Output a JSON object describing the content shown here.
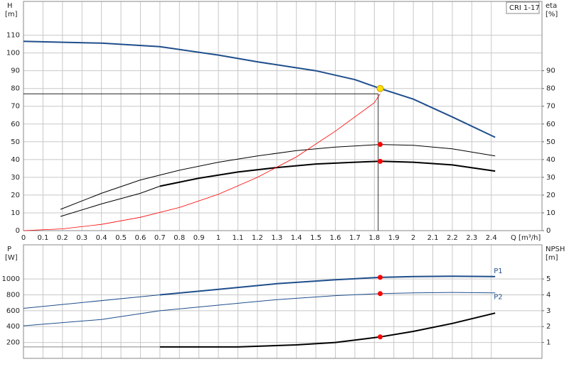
{
  "chart_data": [
    {
      "type": "line",
      "y_label": "H",
      "y_unit": "[m]",
      "y2_label": "eta",
      "y2_unit": "[%]",
      "annotation": "CRI 1-17",
      "x_label": "Q [m³/h]",
      "xlim": [
        0,
        2.66
      ],
      "xticks": [
        0,
        0.1,
        0.2,
        0.3,
        0.4,
        0.5,
        0.6,
        0.7,
        0.8,
        0.9,
        1.0,
        1.1,
        1.2,
        1.3,
        1.4,
        1.5,
        1.6,
        1.7,
        1.8,
        1.9,
        2.0,
        2.1,
        2.2,
        2.3,
        2.4
      ],
      "ylim": [
        0,
        129
      ],
      "yticks": [
        0,
        10,
        20,
        30,
        40,
        50,
        60,
        70,
        80,
        90,
        100,
        110
      ],
      "y2lim": [
        0,
        129
      ],
      "y2ticks": [
        0,
        10,
        20,
        30,
        40,
        50,
        60,
        70,
        80,
        90
      ],
      "grid": true,
      "reference": {
        "x": 1.82,
        "y": 77,
        "color": "#000000"
      },
      "series": [
        {
          "color": "#1f4e8c",
          "width": 2,
          "x": [
            0,
            0.4,
            0.7,
            1.0,
            1.2,
            1.5,
            1.7,
            1.83,
            2.0,
            2.2,
            2.42
          ],
          "values": [
            106.5,
            105.5,
            103.5,
            98.8,
            95,
            90,
            85,
            80,
            74,
            64,
            52.5
          ]
        },
        {
          "color": "#000000",
          "width": 1,
          "x": [
            0.19,
            0.4,
            0.6,
            0.8,
            1.0,
            1.2,
            1.4,
            1.6,
            1.83,
            2.0,
            2.2,
            2.42
          ],
          "values": [
            12,
            21,
            28.5,
            34,
            38.5,
            42,
            45,
            47,
            48.5,
            48,
            46,
            42
          ]
        },
        {
          "color": "#000000",
          "width": 1,
          "x": [
            0.19,
            0.4,
            0.6,
            0.7
          ],
          "values": [
            8,
            15,
            21,
            25
          ]
        },
        {
          "color": "#000000",
          "width": 2,
          "x": [
            0.7,
            0.9,
            1.1,
            1.3,
            1.5,
            1.7,
            1.83,
            2.0,
            2.2,
            2.42
          ],
          "values": [
            25,
            29.5,
            33,
            35.5,
            37.5,
            38.5,
            39,
            38.5,
            37,
            33.5
          ]
        },
        {
          "color": "#ff0000",
          "width": 0.8,
          "x": [
            0,
            0.2,
            0.4,
            0.6,
            0.8,
            1.0,
            1.2,
            1.4,
            1.6,
            1.8,
            1.83
          ],
          "values": [
            0,
            1,
            3.5,
            7.5,
            13,
            20.5,
            30,
            41.5,
            56,
            72,
            77
          ]
        }
      ],
      "points": [
        {
          "x": 1.83,
          "y": 80,
          "color": "#ffe000"
        },
        {
          "x": 1.83,
          "y": 48.5,
          "color": "#ff0000"
        },
        {
          "x": 1.83,
          "y": 39,
          "color": "#ff0000"
        }
      ]
    },
    {
      "type": "line",
      "y_label": "P",
      "y_unit": "[W]",
      "y2_label": "NPSH",
      "y2_unit": "[m]",
      "xlim": [
        0,
        2.66
      ],
      "xticks": [
        0,
        0.1,
        0.2,
        0.3,
        0.4,
        0.5,
        0.6,
        0.7,
        0.8,
        0.9,
        1.0,
        1.1,
        1.2,
        1.3,
        1.4,
        1.5,
        1.6,
        1.7,
        1.8,
        1.9,
        2.0,
        2.1,
        2.2,
        2.3,
        2.4
      ],
      "ylim": [
        0,
        1430
      ],
      "yticks": [
        200,
        400,
        600,
        800,
        1000
      ],
      "y2lim": [
        0,
        7.15
      ],
      "y2ticks": [
        1,
        2,
        3,
        4,
        5
      ],
      "grid": true,
      "series": [
        {
          "name": "P1",
          "color": "#1f4e8c",
          "width": 2,
          "x": [
            0.7,
            1.0,
            1.3,
            1.6,
            1.83,
            2.0,
            2.2,
            2.42
          ],
          "values": [
            800,
            870,
            940,
            990,
            1020,
            1030,
            1035,
            1030
          ]
        },
        {
          "color": "#1f4e8c",
          "width": 1,
          "x": [
            0,
            0.7
          ],
          "values": [
            630,
            800
          ]
        },
        {
          "name": "P2",
          "color": "#1f4e8c",
          "width": 1,
          "x": [
            0,
            0.4,
            0.7,
            1.0,
            1.3,
            1.6,
            1.83,
            2.0,
            2.2,
            2.42
          ],
          "values": [
            410,
            490,
            600,
            670,
            740,
            790,
            815,
            825,
            830,
            825
          ]
        },
        {
          "color": "#000000",
          "width": 2,
          "axis": "y2",
          "x": [
            0.7,
            1.1,
            1.4,
            1.6,
            1.83,
            2.0,
            2.2,
            2.42
          ],
          "values": [
            0.72,
            0.72,
            0.85,
            1.0,
            1.35,
            1.7,
            2.2,
            2.85
          ]
        },
        {
          "color": "#888888",
          "width": 1,
          "axis": "y2",
          "x": [
            0,
            0.7
          ],
          "values": [
            0.72,
            0.72
          ]
        }
      ],
      "points": [
        {
          "x": 1.83,
          "y": 1020,
          "color": "#ff0000"
        },
        {
          "x": 1.83,
          "y": 815,
          "color": "#ff0000"
        },
        {
          "x": 1.83,
          "y": 1.35,
          "axis": "y2",
          "color": "#ff0000"
        }
      ]
    }
  ]
}
